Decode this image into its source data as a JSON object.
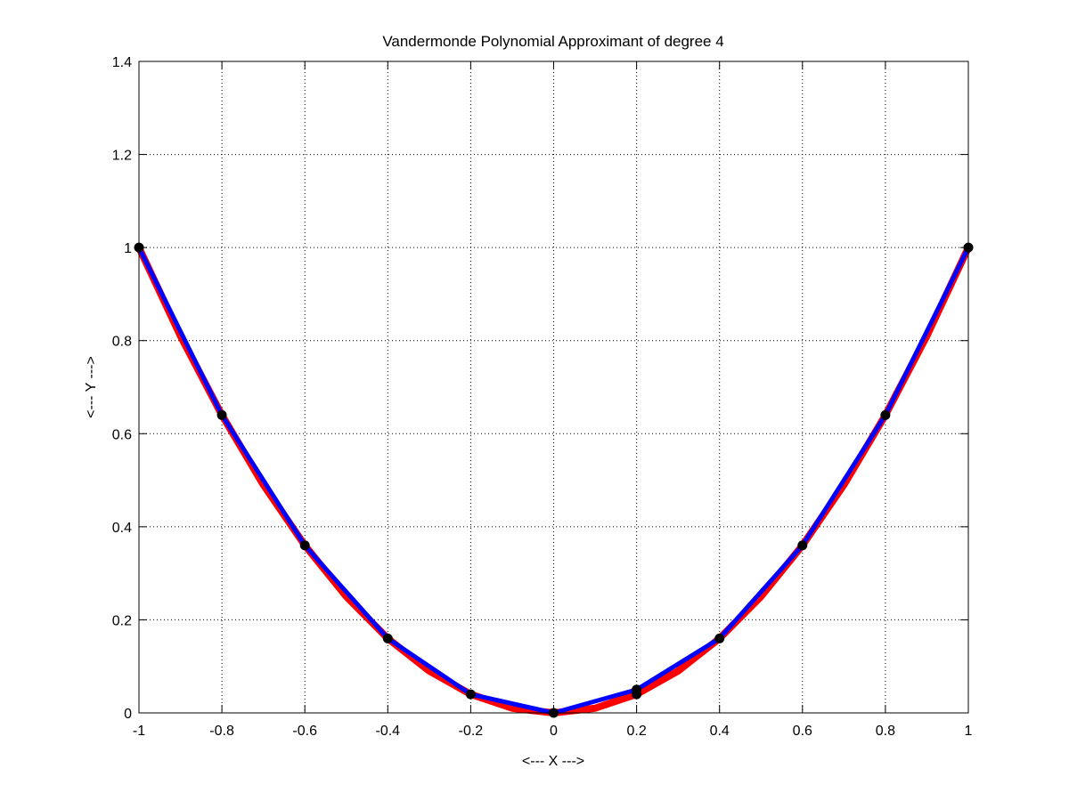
{
  "chart_data": {
    "type": "line",
    "title": "Vandermonde Polynomial Approximant of degree 4",
    "xlabel": "<--- X --->",
    "ylabel": "<--- Y --->",
    "xlim": [
      -1,
      1
    ],
    "ylim": [
      0,
      1.4
    ],
    "xticks": [
      -1,
      -0.8,
      -0.6,
      -0.4,
      -0.2,
      0,
      0.2,
      0.4,
      0.6,
      0.8,
      1
    ],
    "xtick_labels": [
      "-1",
      "-0.8",
      "-0.6",
      "-0.4",
      "-0.2",
      "0",
      "0.2",
      "0.4",
      "0.6",
      "0.8",
      "1"
    ],
    "yticks": [
      0,
      0.2,
      0.4,
      0.6,
      0.8,
      1,
      1.2,
      1.4
    ],
    "ytick_labels": [
      "0",
      "0.2",
      "0.4",
      "0.6",
      "0.8",
      "1",
      "1.2",
      "1.4"
    ],
    "grid": true,
    "series": [
      {
        "color": "#ff0000",
        "x": [
          -1,
          -0.9,
          -0.8,
          -0.7,
          -0.6,
          -0.5,
          -0.4,
          -0.3,
          -0.2,
          -0.1,
          0,
          0.1,
          0.2,
          0.3,
          0.4,
          0.5,
          0.6,
          0.7,
          0.8,
          0.9,
          1
        ],
        "y": [
          1,
          0.81,
          0.64,
          0.49,
          0.36,
          0.25,
          0.16,
          0.09,
          0.04,
          0.01,
          0,
          0.01,
          0.04,
          0.09,
          0.16,
          0.25,
          0.36,
          0.49,
          0.64,
          0.81,
          1
        ]
      },
      {
        "color": "#0000ff",
        "x": [
          -1,
          -0.8,
          -0.6,
          -0.4,
          -0.2,
          0,
          0.2,
          0.4,
          0.6,
          0.8,
          1
        ],
        "y": [
          1,
          0.64,
          0.36,
          0.16,
          0.04,
          0,
          0.05,
          0.16,
          0.36,
          0.64,
          1
        ]
      }
    ],
    "points": {
      "color": "#000000",
      "x": [
        -1,
        -0.8,
        -0.6,
        -0.4,
        -0.2,
        0,
        0.2,
        0.2,
        0.4,
        0.6,
        0.8,
        1
      ],
      "y": [
        1,
        0.64,
        0.36,
        0.16,
        0.04,
        0,
        0.04,
        0.05,
        0.16,
        0.36,
        0.64,
        1
      ]
    }
  }
}
